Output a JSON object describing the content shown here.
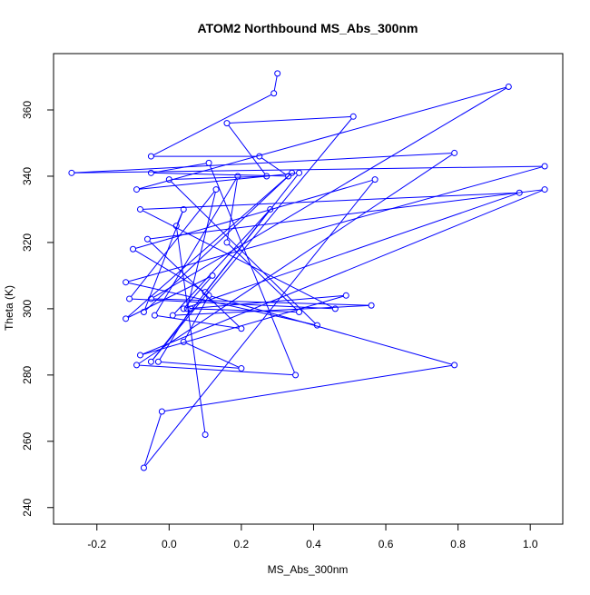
{
  "chart_data": {
    "type": "line",
    "title": "ATOM2 Northbound MS_Abs_300nm",
    "xlabel": "MS_Abs_300nm",
    "ylabel": "Theta (K)",
    "xlim": [
      -0.32,
      1.09
    ],
    "ylim": [
      235,
      377
    ],
    "x_ticks": [
      -0.2,
      0.0,
      0.2,
      0.4,
      0.6,
      0.8,
      1.0
    ],
    "x_tick_labels": [
      "-0.2",
      "0.0",
      "0.2",
      "0.4",
      "0.6",
      "0.8",
      "1.0"
    ],
    "y_ticks": [
      240,
      260,
      280,
      300,
      320,
      340,
      360
    ],
    "y_tick_labels": [
      "240",
      "260",
      "280",
      "300",
      "320",
      "340",
      "360"
    ],
    "grid": false,
    "legend": "none",
    "marker": "open-circle",
    "series": [
      {
        "color": "#0000ff",
        "x": [
          0.3,
          0.29,
          -0.05,
          0.25,
          0.33,
          -0.05,
          0.11,
          0.35,
          -0.09,
          0.79,
          -0.27,
          1.04,
          -0.12,
          0.41,
          0.0,
          0.27,
          0.16,
          0.51,
          -0.05,
          0.36,
          -0.09,
          0.94,
          -0.05,
          0.56,
          0.01,
          0.28,
          0.1,
          -0.1,
          0.57,
          -0.07,
          -0.02,
          0.79,
          0.11,
          0.04,
          0.2,
          -0.03,
          0.06,
          0.36,
          0.16,
          0.19,
          -0.04,
          0.2,
          -0.06,
          1.04,
          -0.08,
          0.49,
          0.05,
          0.13,
          -0.11,
          0.46,
          -0.08,
          0.97,
          0.04,
          0.12,
          -0.12,
          0.34,
          -0.07,
          0.04,
          0.02,
          0.1
        ],
        "y": [
          371,
          365,
          346,
          346,
          340,
          341,
          344,
          280,
          283,
          347,
          341,
          343,
          308,
          295,
          339,
          340,
          356,
          358,
          284,
          341,
          336,
          367,
          303,
          301,
          298,
          330,
          305,
          318,
          339,
          252,
          269,
          283,
          304,
          290,
          282,
          284,
          300,
          299,
          320,
          340,
          298,
          294,
          321,
          336,
          286,
          304,
          300,
          336,
          303,
          300,
          330,
          335,
          300,
          310,
          297,
          341,
          299,
          330,
          325,
          262
        ]
      }
    ]
  }
}
